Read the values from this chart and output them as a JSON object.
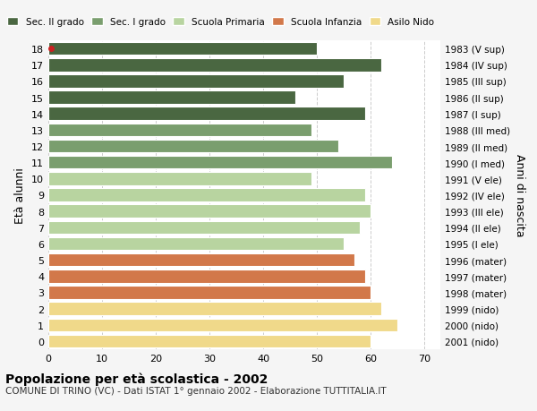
{
  "ages": [
    18,
    17,
    16,
    15,
    14,
    13,
    12,
    11,
    10,
    9,
    8,
    7,
    6,
    5,
    4,
    3,
    2,
    1,
    0
  ],
  "values": [
    50,
    62,
    55,
    46,
    59,
    49,
    54,
    64,
    49,
    59,
    60,
    58,
    55,
    57,
    59,
    60,
    62,
    65,
    60
  ],
  "right_labels": [
    "1983 (V sup)",
    "1984 (IV sup)",
    "1985 (III sup)",
    "1986 (II sup)",
    "1987 (I sup)",
    "1988 (III med)",
    "1989 (II med)",
    "1990 (I med)",
    "1991 (V ele)",
    "1992 (IV ele)",
    "1993 (III ele)",
    "1994 (II ele)",
    "1995 (I ele)",
    "1996 (mater)",
    "1997 (mater)",
    "1998 (mater)",
    "1999 (nido)",
    "2000 (nido)",
    "2001 (nido)"
  ],
  "colors": [
    "#4a6741",
    "#4a6741",
    "#4a6741",
    "#4a6741",
    "#4a6741",
    "#7a9e6e",
    "#7a9e6e",
    "#7a9e6e",
    "#b8d4a0",
    "#b8d4a0",
    "#b8d4a0",
    "#b8d4a0",
    "#b8d4a0",
    "#d2784a",
    "#d2784a",
    "#d2784a",
    "#f0d98a",
    "#f0d98a",
    "#f0d98a"
  ],
  "legend_labels": [
    "Sec. II grado",
    "Sec. I grado",
    "Scuola Primaria",
    "Scuola Infanzia",
    "Asilo Nido"
  ],
  "legend_colors": [
    "#4a6741",
    "#7a9e6e",
    "#b8d4a0",
    "#d2784a",
    "#f0d98a"
  ],
  "title": "Popolazione per età scolastica - 2002",
  "subtitle": "COMUNE DI TRINO (VC) - Dati ISTAT 1° gennaio 2002 - Elaborazione TUTTITALIA.IT",
  "ylabel": "Età alunni",
  "right_ylabel": "Anni di nascita",
  "xlabel_ticks": [
    0,
    10,
    20,
    30,
    40,
    50,
    60,
    70
  ],
  "xlim": [
    0,
    73
  ],
  "bar_height": 0.8,
  "background_color": "#f5f5f5",
  "plot_bg_color": "#ffffff",
  "grid_color": "#cccccc",
  "highlight_dot_age": 18,
  "highlight_dot_color": "#cc2222"
}
